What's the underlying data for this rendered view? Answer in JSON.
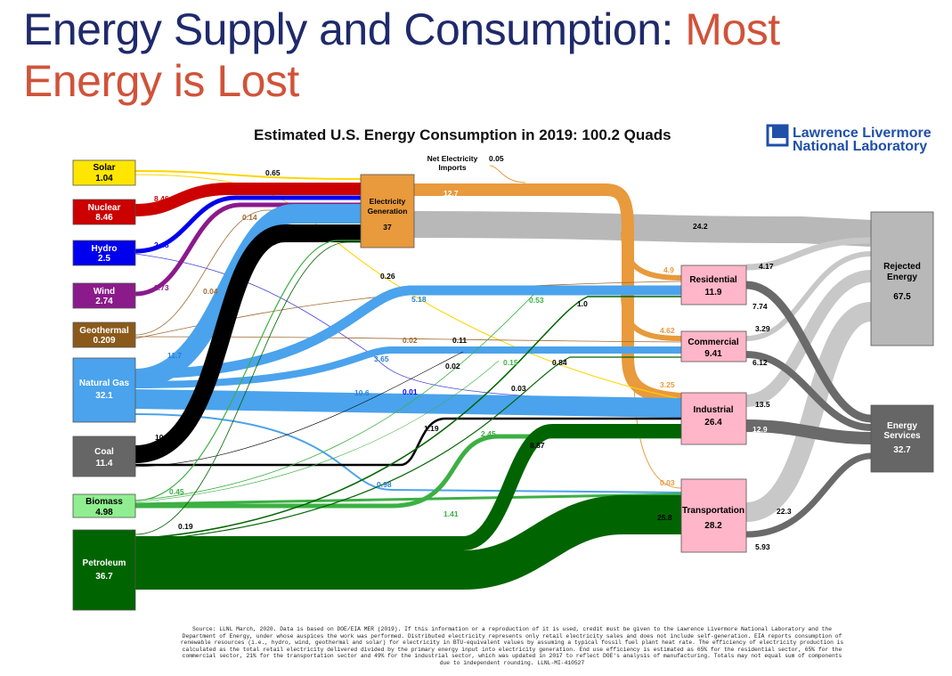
{
  "slide": {
    "title_main": "Energy Supply and Consumption: ",
    "title_accent_1": "Most",
    "title_accent_2": "Energy is Lost"
  },
  "chart": {
    "title": "Estimated U.S. Energy Consumption in 2019: 100.2 Quads",
    "org_line1": "Lawrence Livermore",
    "org_line2": "National Laboratory",
    "net_imports_label_1": "Net Electricity",
    "net_imports_label_2": "Imports",
    "net_imports_value": "0.05"
  },
  "sources": [
    {
      "id": "solar",
      "name": "Solar",
      "value": "1.04",
      "color": "#ffe600"
    },
    {
      "id": "nuclear",
      "name": "Nuclear",
      "value": "8.46",
      "color": "#cc0000"
    },
    {
      "id": "hydro",
      "name": "Hydro",
      "value": "2.5",
      "color": "#0000ee"
    },
    {
      "id": "wind",
      "name": "Wind",
      "value": "2.74",
      "color": "#8b1a8b"
    },
    {
      "id": "geothermal",
      "name": "Geothermal",
      "value": "0.209",
      "color": "#8b5a1a"
    },
    {
      "id": "natural_gas",
      "name": "Natural Gas",
      "value": "32.1",
      "color": "#4aa3ec"
    },
    {
      "id": "coal",
      "name": "Coal",
      "value": "11.4",
      "color": "#666666"
    },
    {
      "id": "biomass",
      "name": "Biomass",
      "value": "4.98",
      "color": "#90ee90"
    },
    {
      "id": "petroleum",
      "name": "Petroleum",
      "value": "36.7",
      "color": "#006400"
    }
  ],
  "sectors": [
    {
      "id": "electricity",
      "name_1": "Electricity",
      "name_2": "Generation",
      "value": "37"
    },
    {
      "id": "residential",
      "name": "Residential",
      "value": "11.9"
    },
    {
      "id": "commercial",
      "name": "Commercial",
      "value": "9.41"
    },
    {
      "id": "industrial",
      "name": "Industrial",
      "value": "26.4"
    },
    {
      "id": "transportation",
      "name": "Transportation",
      "value": "28.2"
    }
  ],
  "outputs": [
    {
      "id": "rejected",
      "name_1": "Rejected",
      "name_2": "Energy",
      "value": "67.5"
    },
    {
      "id": "services",
      "name_1": "Energy",
      "name_2": "Services",
      "value": "32.7"
    }
  ],
  "flow_labels": {
    "solar_elec": "0.65",
    "nuclear_elec": "8.46",
    "hydro_elec": "2.48",
    "wind_elec": "2.73",
    "geo_014": "0.14",
    "geo_004": "0.04",
    "elec_out": "12.7",
    "elec_rejected": "24.2",
    "solar_026": "0.26",
    "ng_res": "5.18",
    "bio_res": "0.53",
    "pet_res": "1.0",
    "elec_res": "4.9",
    "res_rej": "4.17",
    "res_serv": "7.74",
    "geo_002": "0.02",
    "sol_011": "0.11",
    "ng_com": "3.65",
    "coal_com": "0.02",
    "bio_com": "0.15",
    "pet_com": "0.84",
    "elec_com": "4.62",
    "com_rej": "3.29",
    "com_serv": "6.12",
    "ng_ind": "10.6",
    "geo_ind": "0.01",
    "sol_ind": "0.03",
    "elec_ind": "3.25",
    "ind_rej": "13.5",
    "ind_serv": "12.9",
    "ng_elec": "11.7",
    "coal_elec": "10.2",
    "coal_ind": "1.19",
    "bio_ind": "2.45",
    "pet_ind": "8.87",
    "ng_trans": "0.98",
    "elec_trans": "0.03",
    "bio_elec": "0.45",
    "bio_trans": "1.41",
    "pet_elec": "0.19",
    "pet_trans": "25.8",
    "trans_rej": "22.3",
    "trans_serv": "5.93"
  },
  "source_note": "Source: LLNL March, 2020. Data is based on DOE/EIA MER (2019). If this information or a reproduction of it is used, credit must be given to the Lawrence Livermore National Laboratory and the Department of Energy, under whose auspices the work was performed. Distributed electricity represents only retail electricity sales and does not include self-generation. EIA reports consumption of renewable resources (i.e., hydro, wind, geothermal and solar) for electricity in BTU-equivalent values by assuming a typical fossil fuel plant heat rate. The efficiency of electricity production is calculated as the total retail electricity delivered divided by the primary energy input into electricity generation. End use efficiency is estimated as 65% for the residential sector, 65% for the commercial sector, 21% for the transportation sector and 49% for the industrial sector, which was updated in 2017 to reflect DOE's analysis of manufacturing. Totals may not equal sum of components due to independent rounding. LLNL-MI-410527"
}
